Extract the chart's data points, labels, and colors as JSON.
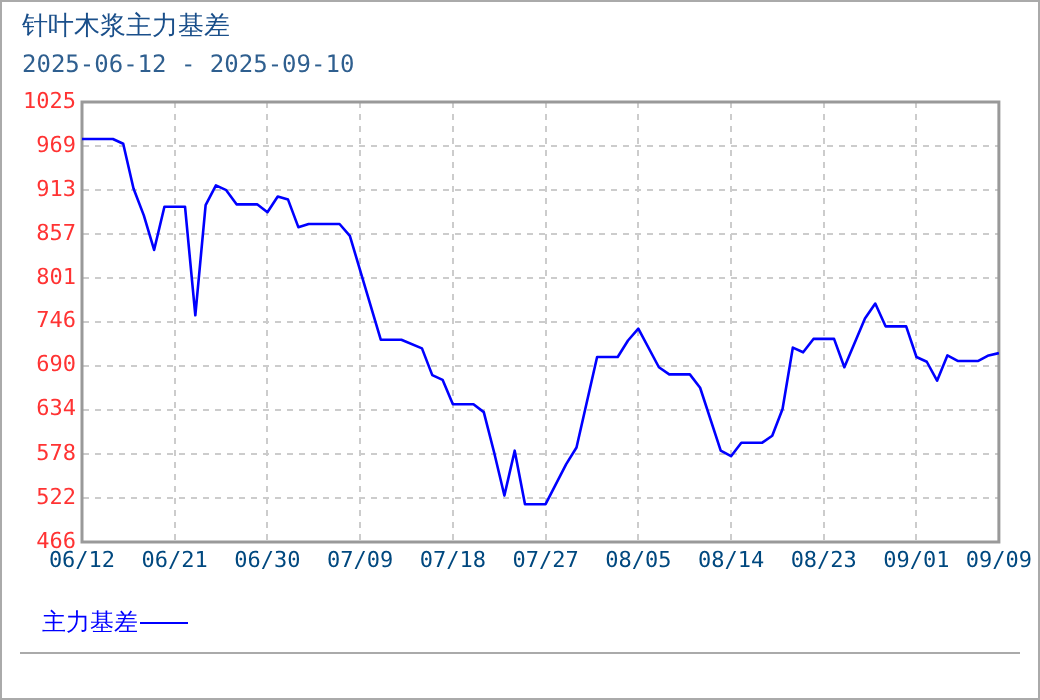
{
  "chart_data": {
    "type": "line",
    "title": "针叶木浆主力基差",
    "subtitle": "2025-06-12 - 2025-09-10",
    "x": [
      "2025-06-12",
      "2025-06-15",
      "2025-06-16",
      "2025-06-17",
      "2025-06-18",
      "2025-06-19",
      "2025-06-20",
      "2025-06-22",
      "2025-06-23",
      "2025-06-24",
      "2025-06-25",
      "2025-06-26",
      "2025-06-27",
      "2025-06-29",
      "2025-06-30",
      "2025-07-01",
      "2025-07-02",
      "2025-07-03",
      "2025-07-04",
      "2025-07-07",
      "2025-07-08",
      "2025-07-11",
      "2025-07-13",
      "2025-07-15",
      "2025-07-16",
      "2025-07-17",
      "2025-07-18",
      "2025-07-20",
      "2025-07-21",
      "2025-07-22",
      "2025-07-23",
      "2025-07-24",
      "2025-07-25",
      "2025-07-27",
      "2025-07-29",
      "2025-07-30",
      "2025-08-01",
      "2025-08-03",
      "2025-08-04",
      "2025-08-05",
      "2025-08-07",
      "2025-08-08",
      "2025-08-10",
      "2025-08-11",
      "2025-08-13",
      "2025-08-14",
      "2025-08-15",
      "2025-08-17",
      "2025-08-18",
      "2025-08-19",
      "2025-08-20",
      "2025-08-21",
      "2025-08-22",
      "2025-08-24",
      "2025-08-25",
      "2025-08-27",
      "2025-08-28",
      "2025-08-29",
      "2025-08-31",
      "2025-09-01",
      "2025-09-02",
      "2025-09-03",
      "2025-09-04",
      "2025-09-05",
      "2025-09-07",
      "2025-09-08",
      "2025-09-09"
    ],
    "series": [
      {
        "name": "主力基差",
        "color": "#0000ff",
        "values": [
          978,
          978,
          972,
          915,
          881,
          837,
          892,
          892,
          754,
          894,
          919,
          913,
          895,
          895,
          885,
          905,
          901,
          866,
          870,
          870,
          855,
          723,
          723,
          712,
          678,
          672,
          641,
          641,
          631,
          580,
          525,
          582,
          514,
          514,
          565,
          586,
          701,
          701,
          722,
          737,
          688,
          679,
          679,
          662,
          582,
          575,
          592,
          592,
          601,
          635,
          713,
          707,
          724,
          724,
          688,
          750,
          769,
          740,
          740,
          701,
          695,
          671,
          703,
          696,
          696,
          703,
          706
        ]
      }
    ],
    "xlim": [
      "2025-06-12",
      "2025-09-09"
    ],
    "xticks": [
      {
        "value": "2025-06-12",
        "label": "06/12"
      },
      {
        "value": "2025-06-21",
        "label": "06/21"
      },
      {
        "value": "2025-06-30",
        "label": "06/30"
      },
      {
        "value": "2025-07-09",
        "label": "07/09"
      },
      {
        "value": "2025-07-18",
        "label": "07/18"
      },
      {
        "value": "2025-07-27",
        "label": "07/27"
      },
      {
        "value": "2025-08-05",
        "label": "08/05"
      },
      {
        "value": "2025-08-14",
        "label": "08/14"
      },
      {
        "value": "2025-08-23",
        "label": "08/23"
      },
      {
        "value": "2025-09-01",
        "label": "09/01"
      },
      {
        "value": "2025-09-09",
        "label": "09/09"
      }
    ],
    "ylim": [
      466,
      1025
    ],
    "yticks": [
      466,
      522,
      578,
      634,
      690,
      746,
      801,
      857,
      913,
      969,
      1025
    ],
    "grid": true,
    "legend": "bottom left",
    "marker": "none",
    "line_style": "solid"
  }
}
